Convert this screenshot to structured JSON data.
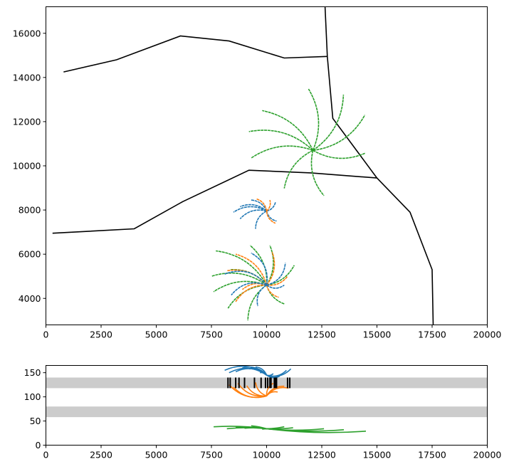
{
  "colors": {
    "blue": "#1f77b4",
    "orange": "#ff7f0e",
    "green": "#2ca02c",
    "boundary": "#000000",
    "band": "#cccccc"
  },
  "chart_data": [
    {
      "type": "line",
      "description_level": "map of boundary lines with radial track bursts",
      "xlim": [
        0,
        20000
      ],
      "ylim": [
        2800,
        17200
      ],
      "xticks": [
        0,
        2500,
        5000,
        7500,
        10000,
        12500,
        15000,
        17500,
        20000
      ],
      "yticks": [
        4000,
        6000,
        8000,
        10000,
        12000,
        14000,
        16000
      ],
      "xtick_labels": [
        "0",
        "2500",
        "5000",
        "7500",
        "10000",
        "12500",
        "15000",
        "17500",
        "20000"
      ],
      "ytick_labels": [
        "4000",
        "6000",
        "8000",
        "10000",
        "12000",
        "14000",
        "16000"
      ],
      "grid": false,
      "boundaries": [
        [
          [
            800,
            14250
          ],
          [
            3200,
            14800
          ],
          [
            6100,
            15880
          ],
          [
            8300,
            15650
          ],
          [
            10800,
            14880
          ],
          [
            12750,
            14950
          ]
        ],
        [
          [
            12650,
            17200
          ],
          [
            12750,
            14950
          ],
          [
            13000,
            12150
          ],
          [
            15000,
            9450
          ]
        ],
        [
          [
            300,
            6950
          ],
          [
            4000,
            7150
          ],
          [
            6200,
            8380
          ],
          [
            9200,
            9800
          ],
          [
            12000,
            9680
          ],
          [
            15000,
            9450
          ]
        ],
        [
          [
            15000,
            9450
          ],
          [
            16500,
            7900
          ],
          [
            17500,
            5300
          ],
          [
            17550,
            2800
          ]
        ]
      ],
      "bursts": [
        {
          "center": [
            12100,
            10700
          ],
          "color_key": "green",
          "ends": [
            [
              11900,
              13480
            ],
            [
              13480,
              13220
            ],
            [
              14450,
              12300
            ],
            [
              14480,
              10580
            ],
            [
              12600,
              8650
            ],
            [
              10800,
              8980
            ],
            [
              9300,
              10350
            ],
            [
              9200,
              11550
            ],
            [
              9800,
              12500
            ]
          ],
          "bend": 0.25
        },
        {
          "center": [
            10000,
            7950
          ],
          "color_key": "blue",
          "ends": [
            [
              9300,
              8450
            ],
            [
              8800,
              8150
            ],
            [
              8500,
              7900
            ],
            [
              8800,
              7600
            ],
            [
              9500,
              7150
            ],
            [
              10450,
              7500
            ],
            [
              10400,
              8350
            ]
          ],
          "bend": 0.3
        },
        {
          "center": [
            10000,
            7950
          ],
          "color_key": "orange",
          "ends": [
            [
              10400,
              7400
            ],
            [
              10150,
              8450
            ],
            [
              9550,
              8500
            ]
          ],
          "bend": 0.3
        },
        {
          "center": [
            10000,
            4600
          ],
          "color_key": "green",
          "ends": [
            [
              7700,
              6150
            ],
            [
              7500,
              5000
            ],
            [
              7600,
              4300
            ],
            [
              8250,
              3550
            ],
            [
              9150,
              3000
            ],
            [
              10800,
              3750
            ],
            [
              11250,
              5500
            ],
            [
              10150,
              6400
            ],
            [
              9250,
              6400
            ],
            [
              8350,
              5300
            ]
          ],
          "bend": 0.25
        },
        {
          "center": [
            10000,
            4600
          ],
          "color_key": "orange",
          "ends": [
            [
              8600,
              6000
            ],
            [
              8200,
              5250
            ],
            [
              8600,
              3850
            ],
            [
              10550,
              4050
            ],
            [
              10950,
              5000
            ],
            [
              10250,
              6100
            ],
            [
              8900,
              4400
            ]
          ],
          "bend": 0.28
        },
        {
          "center": [
            10000,
            4600
          ],
          "color_key": "blue",
          "ends": [
            [
              8100,
              5100
            ],
            [
              8400,
              4150
            ],
            [
              9600,
              3650
            ],
            [
              10800,
              4600
            ],
            [
              10850,
              5600
            ],
            [
              9300,
              6050
            ]
          ],
          "bend": 0.35
        }
      ]
    },
    {
      "type": "line",
      "xlim": [
        0,
        20000
      ],
      "ylim": [
        0,
        165
      ],
      "xticks": [
        0,
        2500,
        5000,
        7500,
        10000,
        12500,
        15000,
        17500,
        20000
      ],
      "yticks": [
        0,
        50,
        100,
        150
      ],
      "xtick_labels": [
        "0",
        "2500",
        "5000",
        "7500",
        "10000",
        "12500",
        "15000",
        "17500",
        "20000"
      ],
      "ytick_labels": [
        "0",
        "50",
        "100",
        "150"
      ],
      "grid": false,
      "bands": [
        [
          118,
          140
        ],
        [
          58,
          80
        ]
      ],
      "markers": {
        "y_range": [
          118,
          140
        ],
        "x": [
          8250,
          8350,
          8600,
          8750,
          9000,
          9450,
          9750,
          9950,
          10050,
          10150,
          10200,
          10350,
          10400,
          10450,
          10950,
          11050
        ]
      },
      "green_tracks": {
        "y_base": 36,
        "ends": [
          [
            7600,
            38
          ],
          [
            8200,
            34
          ],
          [
            8600,
            37
          ],
          [
            9000,
            35
          ],
          [
            9300,
            40
          ],
          [
            9800,
            33
          ],
          [
            10800,
            38
          ],
          [
            11200,
            36
          ],
          [
            12600,
            34
          ],
          [
            13500,
            32
          ],
          [
            14500,
            29
          ]
        ],
        "center": [
          10000,
          34
        ]
      },
      "blue_tracks": {
        "center": [
          10000,
          145
        ],
        "ends": [
          [
            8100,
            155
          ],
          [
            8300,
            150
          ],
          [
            8600,
            152
          ],
          [
            8900,
            160
          ],
          [
            9200,
            158
          ],
          [
            9500,
            162
          ],
          [
            9700,
            150
          ],
          [
            10300,
            148
          ],
          [
            10600,
            143
          ],
          [
            10900,
            155
          ],
          [
            11100,
            158
          ]
        ]
      },
      "orange_tracks": {
        "center": [
          10000,
          102
        ],
        "ends": [
          [
            8300,
            125
          ],
          [
            8500,
            120
          ],
          [
            8700,
            128
          ],
          [
            9100,
            123
          ],
          [
            9500,
            130
          ],
          [
            10300,
            128
          ],
          [
            10500,
            110
          ],
          [
            10800,
            122
          ],
          [
            11000,
            118
          ]
        ]
      }
    }
  ]
}
